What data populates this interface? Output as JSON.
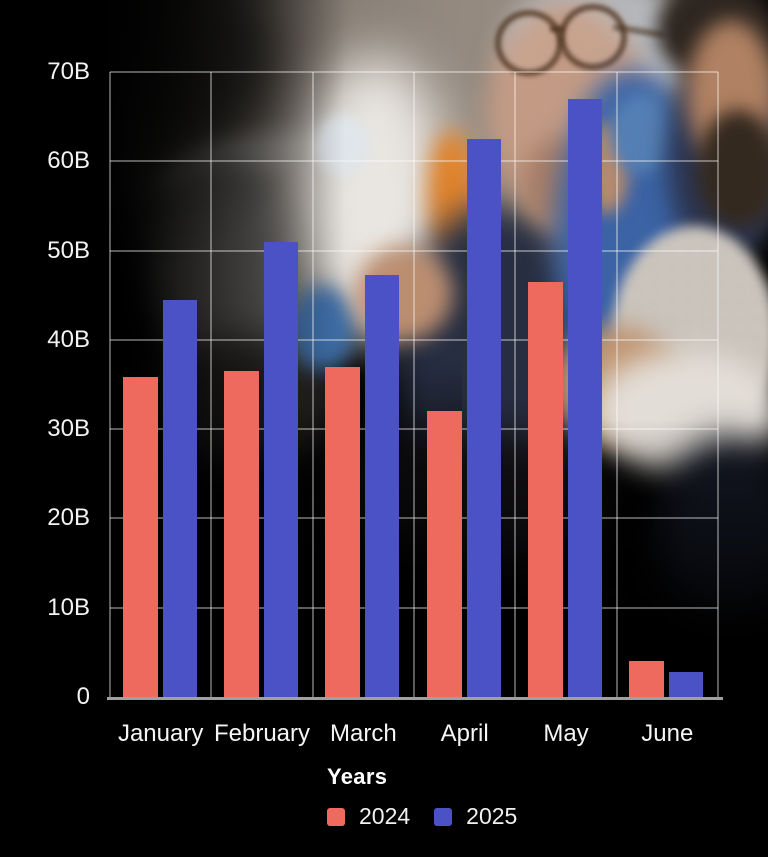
{
  "chart_data": {
    "type": "bar",
    "title": "",
    "categories": [
      "January",
      "February",
      "March",
      "April",
      "May",
      "June"
    ],
    "series": [
      {
        "name": "2024",
        "color": "#EE6A5E",
        "values": [
          35.8,
          36.5,
          37.0,
          32.0,
          46.5,
          4.0
        ]
      },
      {
        "name": "2025",
        "color": "#4B52C6",
        "values": [
          44.5,
          51.0,
          47.3,
          62.5,
          67.0,
          2.8
        ]
      }
    ],
    "unit": "B",
    "y_ticks": [
      "0",
      "10B",
      "20B",
      "30B",
      "40B",
      "50B",
      "60B",
      "70B"
    ],
    "ylim": [
      0,
      70
    ],
    "grid": true,
    "legend_title": "Years",
    "legend_position": "bottom",
    "background_photo": "two businessmen reviewing work at a laptop, photo fading to black at left and bottom"
  },
  "colors": {
    "background": "#020202",
    "gridline": "rgba(255,255,255,0.36)",
    "axis_line": "#c8c8c8",
    "text": "#f3f3f3",
    "series_2024": "#EE6A5E",
    "series_2025": "#4B52C6"
  }
}
